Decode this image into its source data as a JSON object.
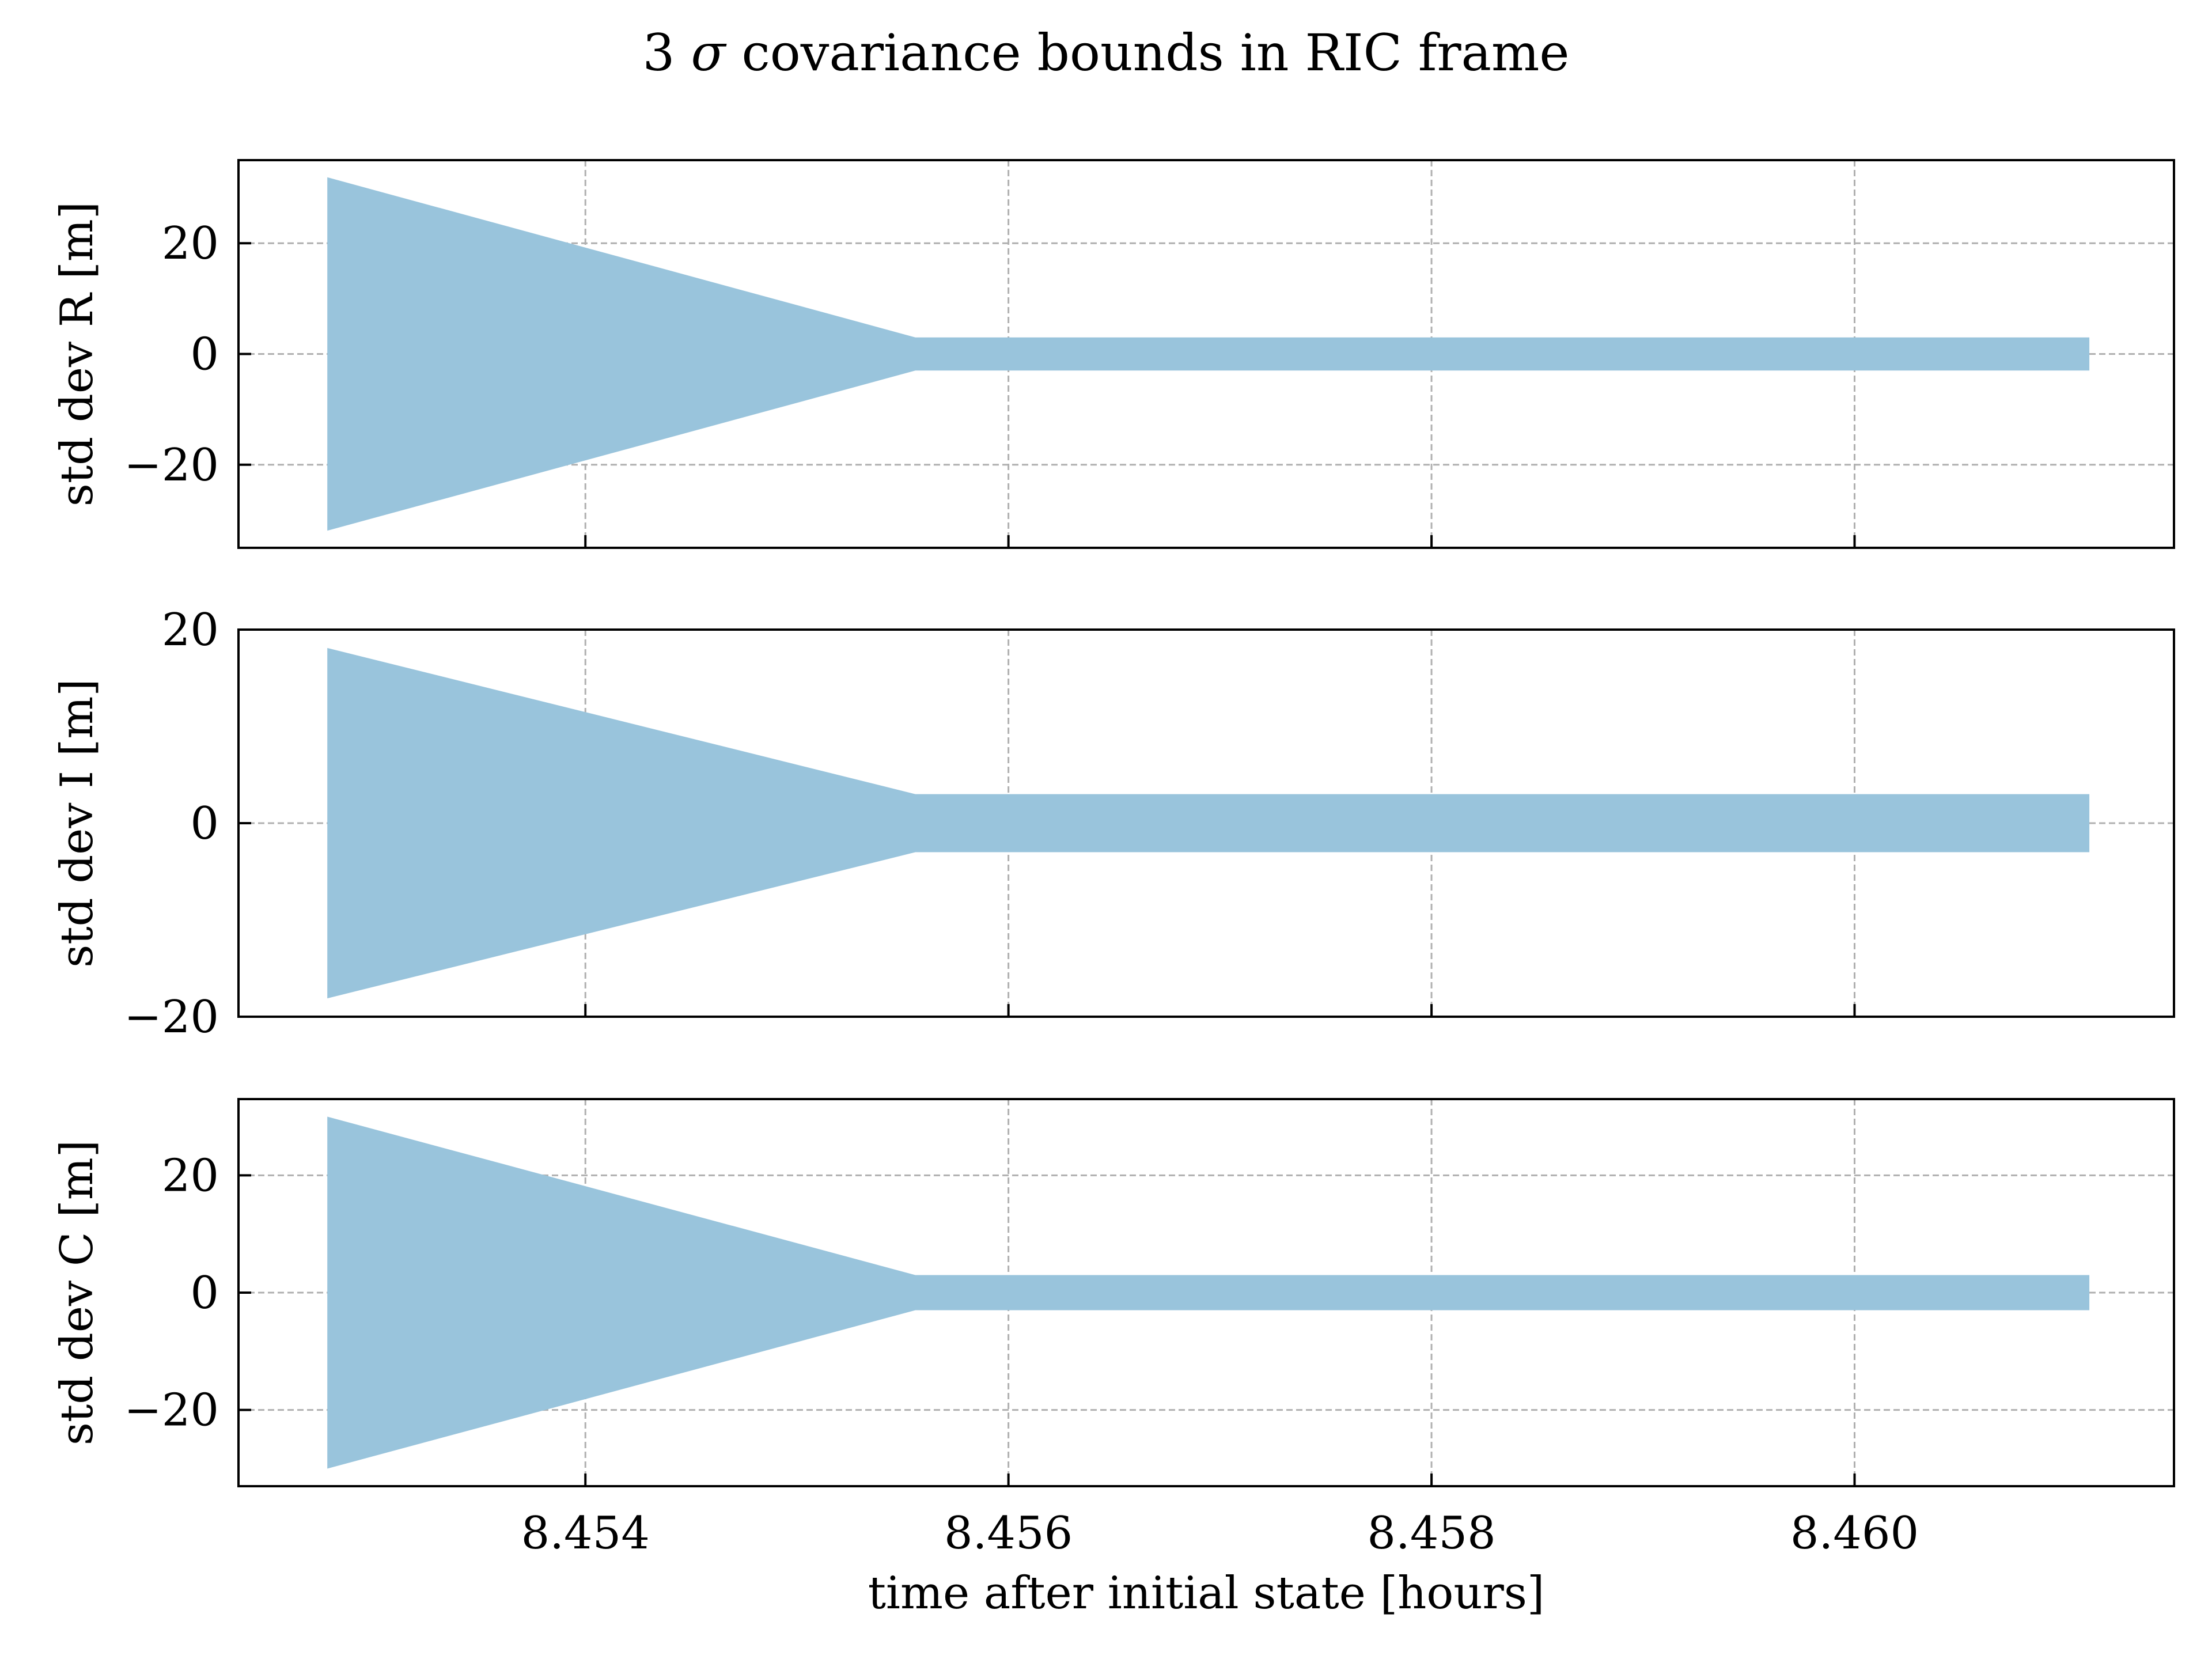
{
  "chart_data": {
    "type": "area",
    "title_prefix": "3 ",
    "title_symbol": "σ",
    "title_suffix": " covariance bounds in RIC frame",
    "title": "3 σ covariance bounds in RIC frame",
    "xlabel": "time after initial state [hours]",
    "xlim": [
      8.45236,
      8.46151
    ],
    "xticks": [
      8.454,
      8.456,
      8.458,
      8.46
    ],
    "xtick_labels": [
      "8.454",
      "8.456",
      "8.458",
      "8.460"
    ],
    "shared_x": true,
    "grid": true,
    "grid_style": "dashed",
    "fill_color": "#99c4dc",
    "subplots": [
      {
        "ylabel": "std dev R [m]",
        "ylim": [
          -35,
          35
        ],
        "yticks": [
          -20,
          0,
          20
        ],
        "ytick_labels": [
          "−20",
          "0",
          "20"
        ],
        "series": [
          {
            "x": [
              8.45278,
              8.45556,
              8.46111
            ],
            "upper": [
              31.9,
              3.0,
              3.0
            ],
            "lower": [
              -31.9,
              -3.0,
              -3.0
            ]
          }
        ]
      },
      {
        "ylabel": "std dev I [m]",
        "ylim": [
          -20,
          20
        ],
        "yticks": [
          -20,
          0,
          20
        ],
        "ytick_labels": [
          "−20",
          "0",
          "20"
        ],
        "series": [
          {
            "x": [
              8.45278,
              8.45556,
              8.46111
            ],
            "upper": [
              18.1,
              3.0,
              3.0
            ],
            "lower": [
              -18.1,
              -3.0,
              -3.0
            ]
          }
        ]
      },
      {
        "ylabel": "std dev C [m]",
        "ylim": [
          -33,
          33
        ],
        "yticks": [
          -20,
          0,
          20
        ],
        "ytick_labels": [
          "−20",
          "0",
          "20"
        ],
        "series": [
          {
            "x": [
              8.45278,
              8.45556,
              8.46111
            ],
            "upper": [
              30.0,
              3.0,
              3.0
            ],
            "lower": [
              -30.0,
              -3.0,
              -3.0
            ]
          }
        ]
      }
    ]
  }
}
